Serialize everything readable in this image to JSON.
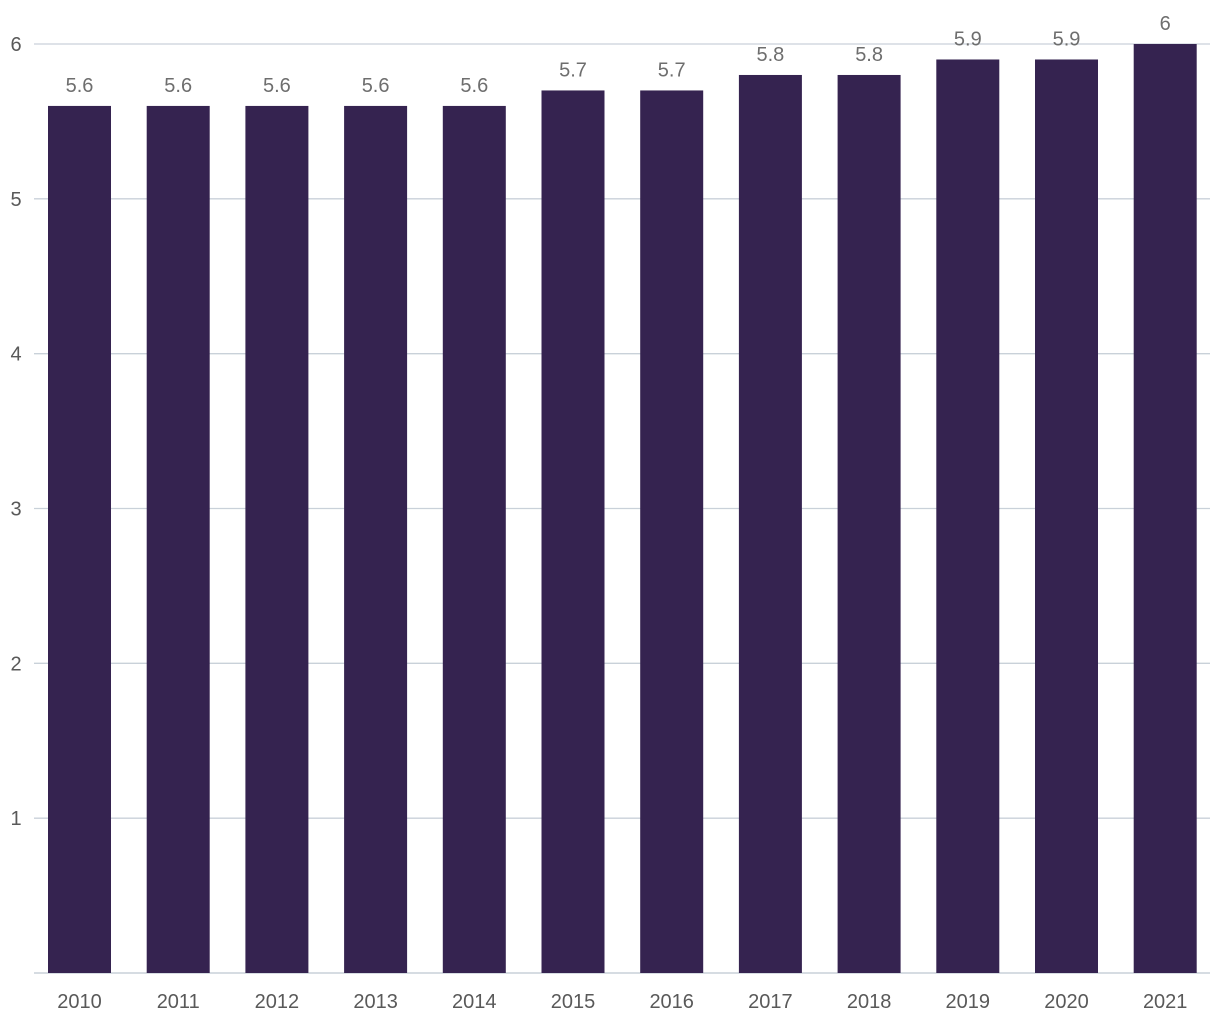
{
  "chart_data": {
    "type": "bar",
    "categories": [
      "2010",
      "2011",
      "2012",
      "2013",
      "2014",
      "2015",
      "2016",
      "2017",
      "2018",
      "2019",
      "2020",
      "2021"
    ],
    "values": [
      5.6,
      5.6,
      5.6,
      5.6,
      5.6,
      5.7,
      5.7,
      5.8,
      5.8,
      5.9,
      5.9,
      6
    ],
    "data_labels": [
      "5.6",
      "5.6",
      "5.6",
      "5.6",
      "5.6",
      "5.7",
      "5.7",
      "5.8",
      "5.8",
      "5.9",
      "5.9",
      "6"
    ],
    "y_ticks": [
      "1",
      "2",
      "3",
      "4",
      "5",
      "6"
    ],
    "title": "",
    "xlabel": "",
    "ylabel": "",
    "ylim": [
      0,
      6
    ],
    "grid": true,
    "legend": "none",
    "bar_color": "#352350"
  }
}
